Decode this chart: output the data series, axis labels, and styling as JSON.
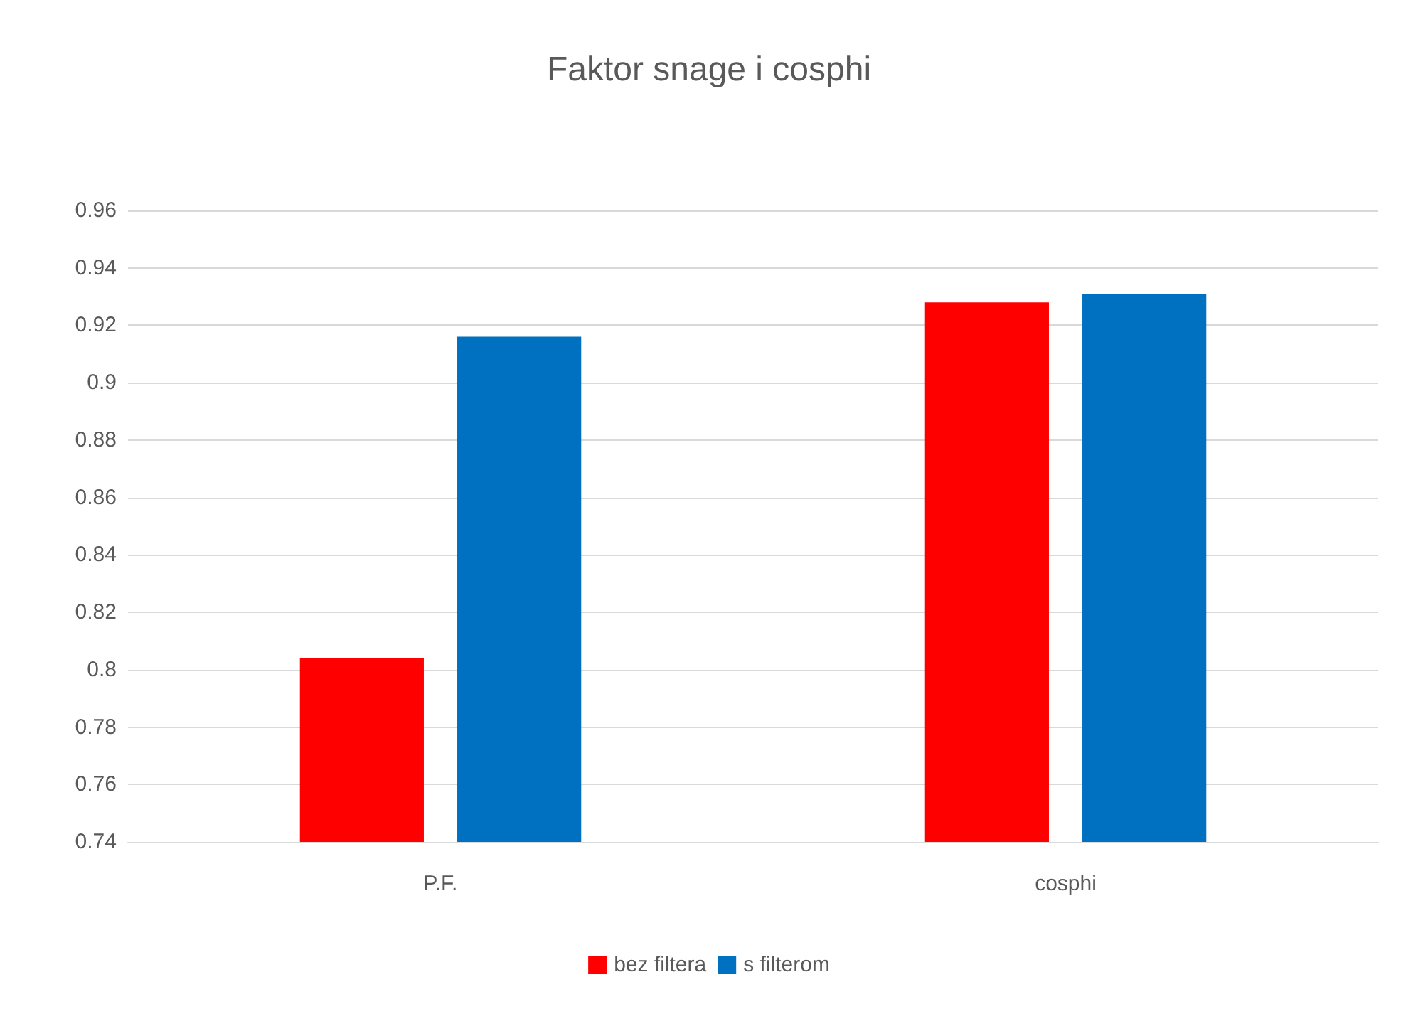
{
  "chart_data": {
    "type": "bar",
    "title": "Faktor snage i cosphi",
    "categories": [
      "P.F.",
      "cosphi"
    ],
    "series": [
      {
        "name": "bez filtera",
        "color": "#ff0000",
        "values": [
          0.804,
          0.928
        ]
      },
      {
        "name": "s filterom",
        "color": "#0070c0",
        "values": [
          0.916,
          0.931
        ]
      }
    ],
    "ylim": [
      0.74,
      0.96
    ],
    "yticks": [
      0.74,
      0.76,
      0.78,
      0.8,
      0.82,
      0.84,
      0.86,
      0.88,
      0.9,
      0.92,
      0.94,
      0.96
    ],
    "grid": "y",
    "legend": "bottom"
  }
}
